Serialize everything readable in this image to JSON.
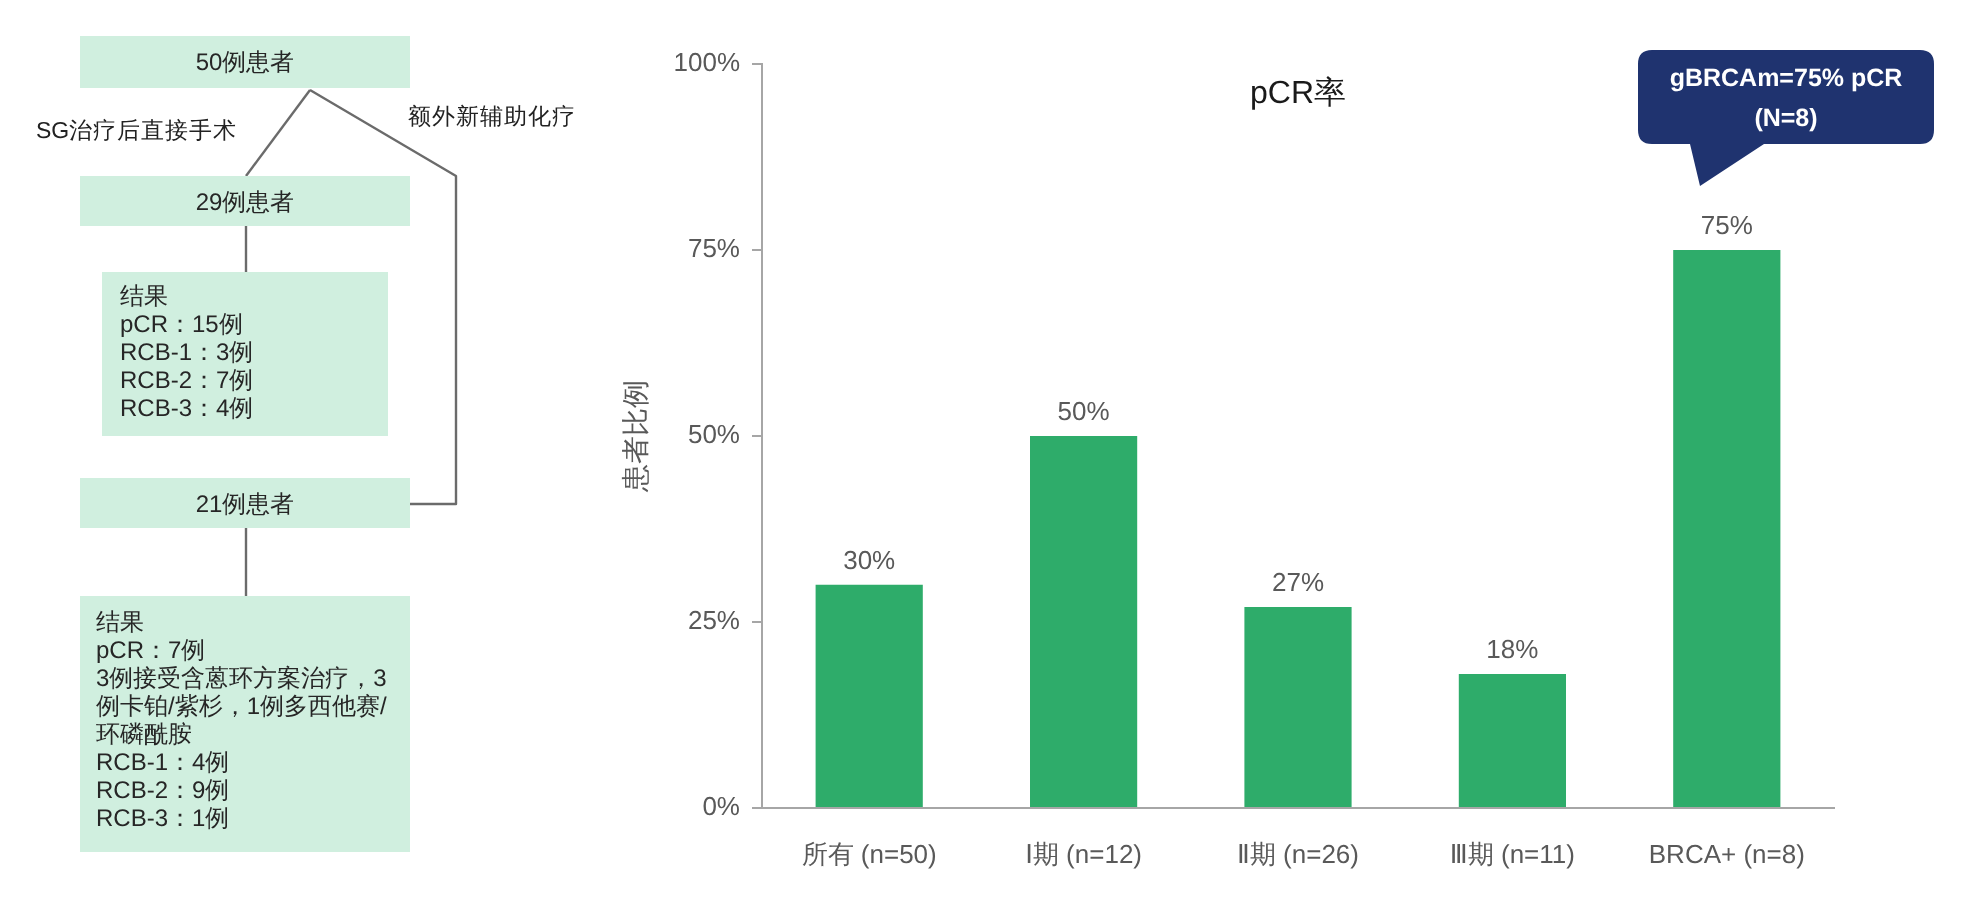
{
  "chart_data": [
    {
      "type": "other",
      "annotations": [
        "50例患者",
        "SG治疗后直接手术",
        "额外新辅助化疗",
        "29例患者",
        "结果\npCR：15例\nRCB-1：3例\nRCB-2：7例\nRCB-3：4例",
        "21例患者",
        "结果\npCR：7例\n3例接受含蒽环方案治疗，3例卡铂/紫杉，1例多西他赛/环磷酰胺\nRCB-1：4例\nRCB-2：9例\nRCB-3：1例"
      ]
    },
    {
      "type": "bar",
      "title": "pCR率",
      "ylabel": "患者比例",
      "categories": [
        "所有 (n=50)",
        "Ⅰ期 (n=12)",
        "Ⅱ期 (n=26)",
        "Ⅲ期 (n=11)",
        "BRCA+ (n=8)"
      ],
      "values": [
        30,
        50,
        27,
        18,
        75
      ],
      "color": "#2eac6a",
      "value_labels": [
        "30%",
        "50%",
        "27%",
        "18%",
        "75%"
      ],
      "ylim": [
        0,
        100
      ],
      "yticks": [
        {
          "value": 0,
          "label": "0%"
        },
        {
          "value": 25,
          "label": "25%"
        },
        {
          "value": 50,
          "label": "50%"
        },
        {
          "value": 75,
          "label": "75%"
        },
        {
          "value": 100,
          "label": "100%"
        }
      ],
      "annotations": [
        "gBRCAm=75% pCR\n(N=8)"
      ]
    }
  ]
}
